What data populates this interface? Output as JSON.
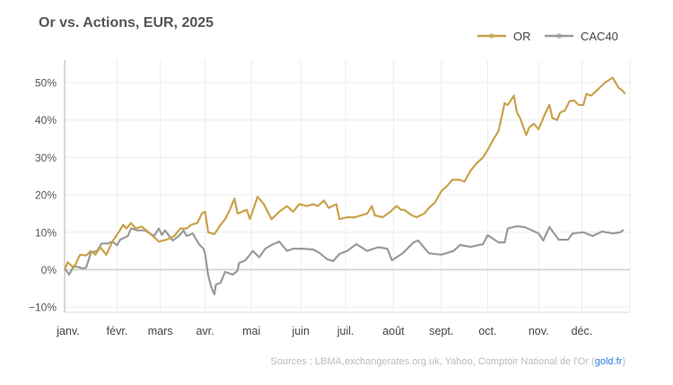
{
  "chart_data": {
    "type": "line",
    "title": "Or vs. Actions,  EUR, 2025",
    "xlabel": "",
    "ylabel": "",
    "x_unit": "day of year 2025",
    "xlim": [
      0,
      365
    ],
    "ylim": [
      -11,
      55
    ],
    "grid": true,
    "legend_position": "top-right",
    "yticks": [
      -10,
      0,
      10,
      20,
      30,
      40,
      50
    ],
    "ytick_labels": [
      "−10%",
      "0%",
      "10%",
      "20%",
      "30%",
      "40%",
      "50%"
    ],
    "xticks": [
      0,
      34,
      62,
      91,
      121,
      153,
      182,
      213,
      244,
      274,
      307,
      335
    ],
    "xtick_labels": [
      "janv.",
      "févr.",
      "mars",
      "avr.",
      "mai",
      "juin",
      "juil.",
      "août",
      "sept.",
      "oct.",
      "nov.",
      "déc."
    ],
    "series": [
      {
        "name": "OR",
        "color": "#c9a24b",
        "x": [
          0,
          2,
          6,
          10,
          14,
          17,
          20,
          23,
          27,
          31,
          35,
          38,
          40,
          43,
          46,
          50,
          53,
          57,
          61,
          66,
          71,
          75,
          79,
          82,
          86,
          89,
          91,
          93,
          97,
          101,
          104,
          107,
          110,
          112,
          118,
          120,
          125,
          129,
          134,
          139,
          144,
          148,
          152,
          157,
          161,
          164,
          168,
          171,
          176,
          178,
          183,
          188,
          192,
          196,
          199,
          201,
          206,
          211,
          215,
          218,
          220,
          225,
          228,
          233,
          236,
          240,
          244,
          248,
          251,
          256,
          259,
          263,
          267,
          271,
          274,
          278,
          281,
          285,
          287,
          291,
          293,
          295,
          299,
          301,
          304,
          307,
          311,
          314,
          316,
          319,
          321,
          324,
          327,
          330,
          333,
          336,
          338,
          341,
          345,
          350,
          355,
          359,
          361,
          363
        ],
        "values": [
          0,
          2,
          0.5,
          4,
          3.8,
          5,
          4,
          6,
          4,
          7.5,
          10,
          12,
          11,
          12.5,
          11,
          11.5,
          10.5,
          9,
          7.5,
          8,
          9,
          11,
          11,
          12,
          12.5,
          15,
          15.5,
          10,
          9.5,
          12,
          13.5,
          16,
          19,
          15,
          16,
          13.5,
          19.5,
          17.5,
          13.5,
          15.5,
          17,
          15.5,
          17.5,
          17,
          17.5,
          17,
          18.5,
          16.5,
          17.5,
          13.5,
          14,
          14,
          14.5,
          15,
          17,
          14.5,
          14,
          15.5,
          17,
          16,
          16,
          14.5,
          14,
          15,
          16.5,
          18,
          21,
          22.5,
          24,
          24,
          23.5,
          26.5,
          28.5,
          30,
          32,
          35,
          37,
          44.5,
          44,
          46.5,
          42,
          40.5,
          36,
          38,
          39,
          37.5,
          41.5,
          44,
          40.5,
          40,
          42,
          42.5,
          45,
          45.2,
          44,
          44,
          47,
          46.5,
          48,
          50,
          51.3,
          48.5,
          48,
          47
        ]
      },
      {
        "name": "CAC40",
        "color": "#9a9a9a",
        "x": [
          0,
          3,
          6,
          12,
          14,
          17,
          21,
          24,
          28,
          31,
          34,
          36,
          41,
          43,
          47,
          52,
          58,
          61,
          63,
          65,
          70,
          74,
          77,
          79,
          83,
          87,
          90,
          91,
          93,
          95,
          97,
          98,
          101,
          104,
          109,
          112,
          113,
          117,
          122,
          126,
          130,
          135,
          139,
          144,
          148,
          154,
          161,
          165,
          170,
          174,
          178,
          183,
          189,
          196,
          203,
          209,
          212,
          219,
          226,
          229,
          236,
          244,
          252,
          256,
          263,
          271,
          274,
          281,
          285,
          287,
          293,
          298,
          307,
          310,
          314,
          320,
          326,
          329,
          336,
          342,
          348,
          355,
          360,
          362
        ],
        "values": [
          0.3,
          -1.3,
          1,
          0.3,
          0.6,
          4.5,
          5,
          7,
          7,
          7.5,
          6.5,
          8,
          9,
          11,
          10.5,
          10.5,
          9,
          11,
          9.3,
          10.5,
          7.8,
          9,
          10.5,
          9,
          9.7,
          6.8,
          5.6,
          4.2,
          -1.5,
          -4.7,
          -6.6,
          -4,
          -3.5,
          -0.6,
          -1.3,
          -0.3,
          1.8,
          2.5,
          5,
          3.3,
          5.6,
          6.8,
          7.5,
          5,
          5.6,
          5.6,
          5.4,
          4.5,
          2.8,
          2.3,
          4.2,
          5,
          6.8,
          5,
          6,
          5.6,
          2.5,
          4.4,
          7.3,
          7.8,
          4.4,
          4,
          5,
          6.6,
          6.1,
          6.8,
          9.2,
          7.3,
          7.3,
          11,
          11.6,
          11.4,
          9.7,
          7.8,
          11.4,
          8,
          8,
          9.7,
          10,
          9,
          10.2,
          9.7,
          10,
          10.7
        ]
      }
    ],
    "source_text": "Sources : LBMA,exchangerates.org.uk, Yahoo, Comptoir National de l'Or (",
    "source_link": "gold.fr",
    "source_end": ")"
  }
}
